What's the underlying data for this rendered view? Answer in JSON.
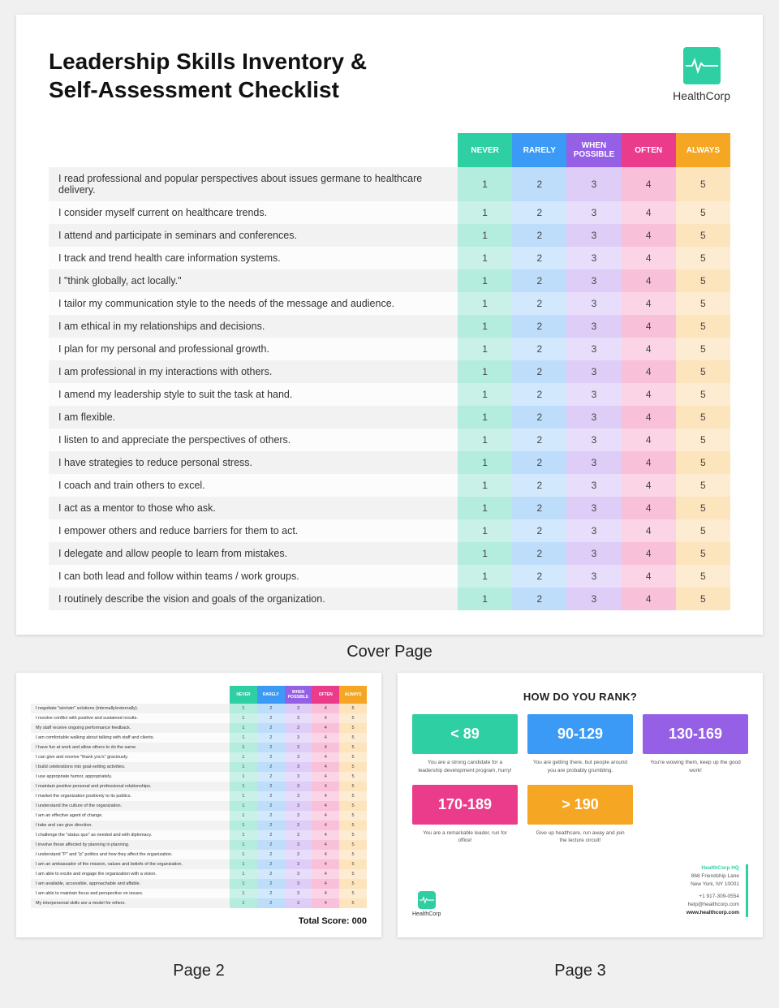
{
  "brand": "HealthCorp",
  "title_line1": "Leadership Skills Inventory &",
  "title_line2": "Self-Assessment Checklist",
  "captions": {
    "cover": "Cover Page",
    "p2": "Page 2",
    "p3": "Page 3"
  },
  "scale": {
    "headers": [
      "NEVER",
      "RARELY",
      "WHEN POSSIBLE",
      "OFTEN",
      "ALWAYS"
    ],
    "header_colors": [
      "#2ecfa3",
      "#3a9af5",
      "#9560e6",
      "#eb3c8c",
      "#f5a623"
    ],
    "values": [
      "1",
      "2",
      "3",
      "4",
      "5"
    ]
  },
  "cover_questions": [
    "I read professional and popular perspectives about issues germane to healthcare delivery.",
    "I consider myself current on healthcare trends.",
    "I attend and participate in seminars and conferences.",
    "I track and trend health care information systems.",
    "I \"think globally, act locally.\"",
    "I tailor my communication style to the needs of the message and audience.",
    "I am ethical in my relationships and decisions.",
    "I plan for my personal and professional growth.",
    "I am professional in my interactions with others.",
    "I amend my leadership style to suit the task at hand.",
    "I am flexible.",
    "I listen to and appreciate the perspectives of others.",
    "I have strategies to reduce personal stress.",
    "I coach and train others to excel.",
    "I act as a mentor to those who ask.",
    "I empower others and reduce barriers for them to act.",
    "I delegate and allow people to learn from mistakes.",
    "I can both lead and follow within teams / work groups.",
    "I routinely describe the vision and goals of the organization."
  ],
  "page2_questions": [
    "I negotiate \"win/win\" solutions (internally/externally).",
    "I resolve conflict with positive and sustained results.",
    "My staff receive ongoing performance feedback.",
    "I am comfortable walking about talking with staff and clients.",
    "I have fun at work and allow others to do the same.",
    "I can give and receive \"thank you's\" graciously.",
    "I build celebrations into goal-setting activities.",
    "I use appropriate humor, appropriately.",
    "I maintain positive personal and professional relationships.",
    "I market the organization positively to its publics.",
    "I understand the culture of the organization.",
    "I am an effective agent of change.",
    "I take and can give direction.",
    "I challenge the \"status quo\" as needed and with diplomacy.",
    "I involve those affected by planning in planning.",
    "I understand \"P\" and \"p\" politics and how they affect the organization.",
    "I am an ambassador of the mission, values and beliefs of the organization.",
    "I am able to excite and engage the organization with a vision.",
    "I am available, accessible, approachable and affable.",
    "I am able to maintain focus and perspective on issues.",
    "My interpersonal skills are a model for others."
  ],
  "total_score": {
    "label": "Total Score: ",
    "value": "000"
  },
  "page3": {
    "title": "HOW DO YOU RANK?",
    "ranks": [
      {
        "range": "< 89",
        "color": "#2ecfa3",
        "desc": "You are a strong candidate for a leadership development program, hurry!"
      },
      {
        "range": "90-129",
        "color": "#3a9af5",
        "desc": "You are getting there, but people around you are probably grumbling."
      },
      {
        "range": "130-169",
        "color": "#9560e6",
        "desc": "You're wowing them, keep up the good work!"
      },
      {
        "range": "170-189",
        "color": "#eb3c8c",
        "desc": "You are a remarkable leader, run for office!"
      },
      {
        "range": "> 190",
        "color": "#f5a623",
        "desc": "Give up healthcare, run away and join the lecture circuit!"
      }
    ],
    "address": {
      "hq": "HealthCorp HQ",
      "line1": "868  Friendship Lane",
      "line2": "New York, NY 10001",
      "phone": "+1 917-309-0554",
      "email": "help@healthcorp.com",
      "site": "www.healthcorp.com"
    }
  }
}
